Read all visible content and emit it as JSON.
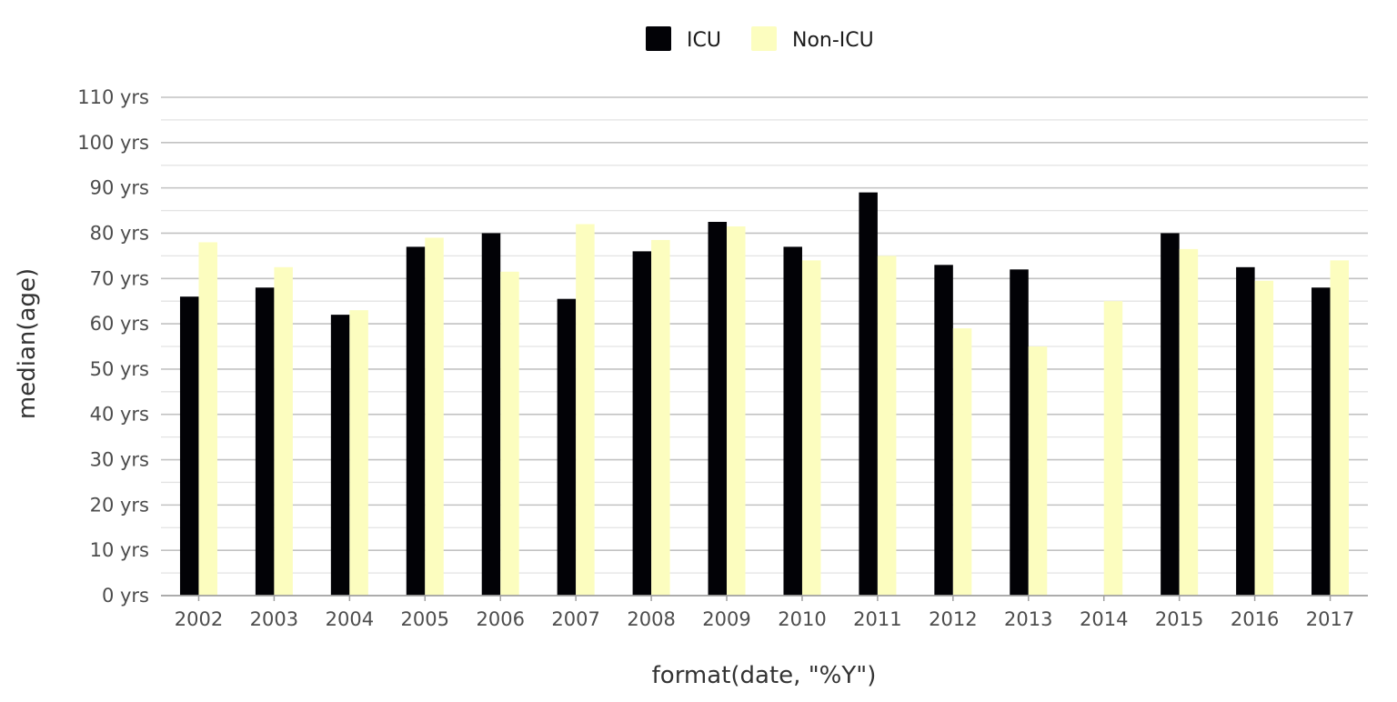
{
  "chart_data": {
    "type": "bar",
    "xlabel": "format(date, \"%Y\")",
    "ylabel": "median(age)",
    "ylim": [
      0,
      110
    ],
    "y_ticks": [
      0,
      10,
      20,
      30,
      40,
      50,
      60,
      70,
      80,
      90,
      100,
      110
    ],
    "y_tick_suffix": " yrs",
    "grid": true,
    "legend_position": "top",
    "categories": [
      "2002",
      "2003",
      "2004",
      "2005",
      "2006",
      "2007",
      "2008",
      "2009",
      "2010",
      "2011",
      "2012",
      "2013",
      "2014",
      "2015",
      "2016",
      "2017"
    ],
    "series": [
      {
        "name": "ICU",
        "color": "#020206",
        "values": [
          66,
          68,
          62,
          77,
          80,
          65.5,
          76,
          82.5,
          77,
          89,
          73,
          72,
          null,
          80,
          72.5,
          68
        ]
      },
      {
        "name": "Non-ICU",
        "color": "#FCFDBF",
        "values": [
          78,
          72.5,
          63,
          79,
          71.5,
          82,
          78.5,
          81.5,
          74,
          75,
          59,
          55,
          65,
          76.5,
          69.5,
          74
        ]
      }
    ]
  }
}
